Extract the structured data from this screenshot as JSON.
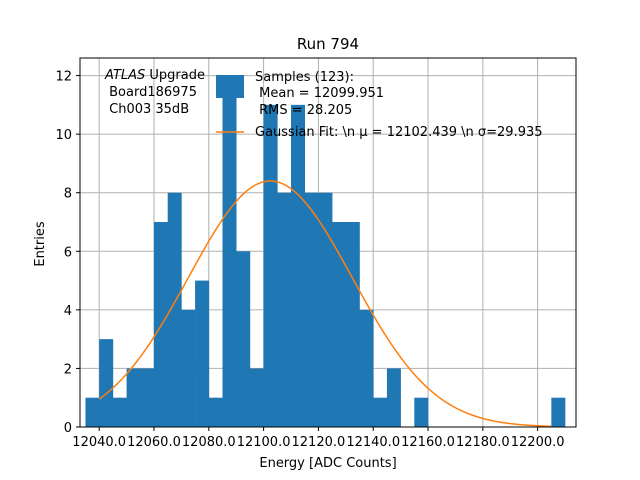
{
  "chart_data": {
    "type": "bar",
    "title": "Run 794",
    "xlabel": "Energy [ADC Counts]",
    "ylabel": "Entries",
    "xlim": [
      12033.0,
      12214.0
    ],
    "ylim": [
      0,
      12.6
    ],
    "xticks": [
      12040.0,
      12060.0,
      12080.0,
      12100.0,
      12120.0,
      12140.0,
      12160.0,
      12180.0,
      12200.0
    ],
    "xtick_labels": [
      "12040.0",
      "12060.0",
      "12080.0",
      "12100.0",
      "12120.0",
      "12140.0",
      "12160.0",
      "12180.0",
      "12200.0"
    ],
    "yticks": [
      0,
      2,
      4,
      6,
      8,
      10,
      12
    ],
    "ytick_labels": [
      "0",
      "2",
      "4",
      "6",
      "8",
      "10",
      "12"
    ],
    "grid": true,
    "bin_width": 5,
    "bins": [
      {
        "x": 12035,
        "count": 1
      },
      {
        "x": 12040,
        "count": 3
      },
      {
        "x": 12045,
        "count": 1
      },
      {
        "x": 12050,
        "count": 2
      },
      {
        "x": 12055,
        "count": 2
      },
      {
        "x": 12060,
        "count": 7
      },
      {
        "x": 12065,
        "count": 8
      },
      {
        "x": 12070,
        "count": 4
      },
      {
        "x": 12075,
        "count": 5
      },
      {
        "x": 12080,
        "count": 1
      },
      {
        "x": 12085,
        "count": 12
      },
      {
        "x": 12090,
        "count": 6
      },
      {
        "x": 12095,
        "count": 2
      },
      {
        "x": 12100,
        "count": 11
      },
      {
        "x": 12105,
        "count": 8
      },
      {
        "x": 12110,
        "count": 11
      },
      {
        "x": 12115,
        "count": 8
      },
      {
        "x": 12120,
        "count": 8
      },
      {
        "x": 12125,
        "count": 7
      },
      {
        "x": 12130,
        "count": 7
      },
      {
        "x": 12135,
        "count": 4
      },
      {
        "x": 12140,
        "count": 1
      },
      {
        "x": 12145,
        "count": 2
      },
      {
        "x": 12150,
        "count": 0
      },
      {
        "x": 12155,
        "count": 1
      },
      {
        "x": 12160,
        "count": 0
      },
      {
        "x": 12165,
        "count": 0
      },
      {
        "x": 12170,
        "count": 0
      },
      {
        "x": 12175,
        "count": 0
      },
      {
        "x": 12180,
        "count": 0
      },
      {
        "x": 12185,
        "count": 0
      },
      {
        "x": 12190,
        "count": 0
      },
      {
        "x": 12195,
        "count": 0
      },
      {
        "x": 12200,
        "count": 0
      },
      {
        "x": 12205,
        "count": 1
      }
    ],
    "fit": {
      "type": "gaussian",
      "mu": 12102.439,
      "sigma": 29.935,
      "amplitude": 8.4,
      "x_range": [
        12040.0,
        12205.0
      ]
    },
    "colors": {
      "bars": "#1f77b4",
      "fit": "#ff7f0e",
      "grid": "#b0b0b0"
    },
    "legend": {
      "placement": "top-right",
      "entries": [
        {
          "lines": [
            "Samples (123):",
            " Mean = 12099.951",
            " RMS = 28.205"
          ],
          "kind": "bar"
        },
        {
          "lines": [
            "Gaussian Fit: \\n μ = 12102.439 \\n σ=29.935"
          ],
          "kind": "line"
        }
      ]
    },
    "annotation": {
      "placement": "top-left",
      "italic": "ATLAS",
      "first_line_rest": " Upgrade",
      "lines": [
        " Board186975",
        " Ch003 35dB"
      ]
    }
  }
}
